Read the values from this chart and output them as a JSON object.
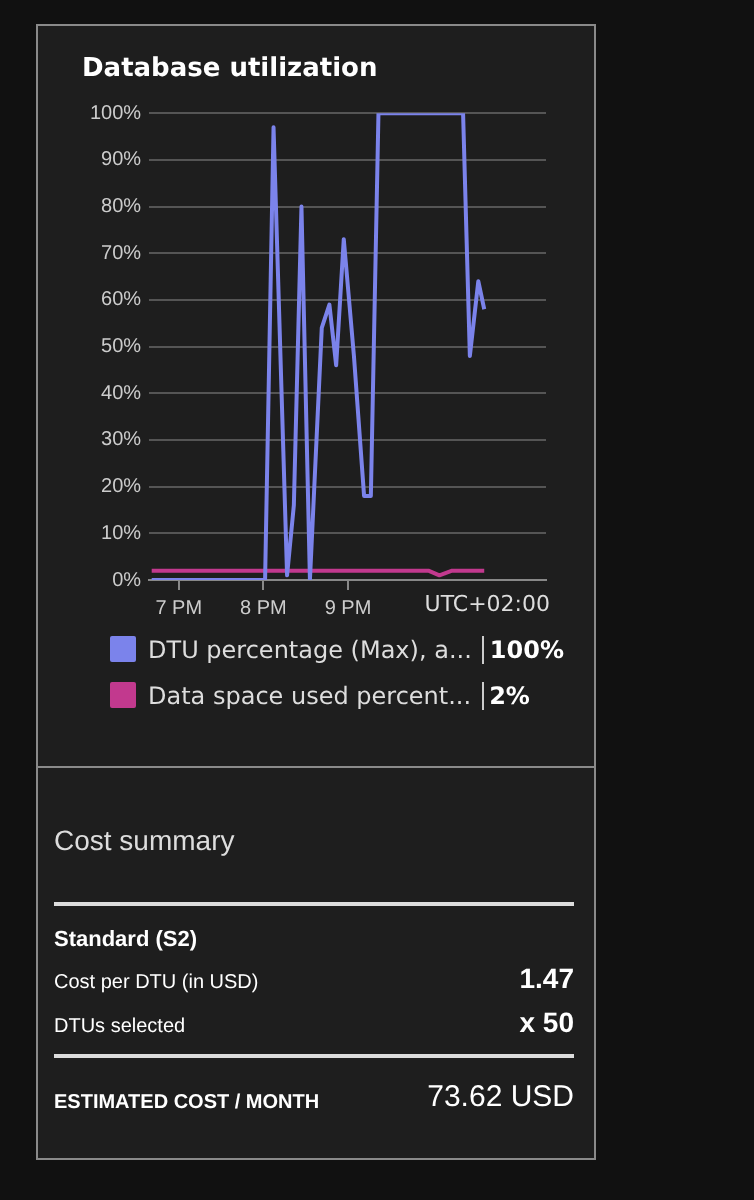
{
  "chart_data": [
    {
      "type": "line",
      "title": "Database utilization",
      "xlabel": "UTC+02:00",
      "legend": "bottom",
      "grid": "y",
      "marker": "none",
      "line_style": "solid",
      "xlim": [
        6.65,
        11.34
      ],
      "xticks": [
        {
          "value": 7,
          "label": "7 PM"
        },
        {
          "value": 8,
          "label": "8 PM"
        },
        {
          "value": 9,
          "label": "9 PM"
        }
      ],
      "ylim": [
        0,
        100
      ],
      "yticks": [
        {
          "value": 0,
          "label": "0%"
        },
        {
          "value": 10,
          "label": "10%"
        },
        {
          "value": 20,
          "label": "20%"
        },
        {
          "value": 30,
          "label": "30%"
        },
        {
          "value": 40,
          "label": "40%"
        },
        {
          "value": 50,
          "label": "50%"
        },
        {
          "value": 60,
          "label": "60%"
        },
        {
          "value": 70,
          "label": "70%"
        },
        {
          "value": 80,
          "label": "80%"
        },
        {
          "value": 90,
          "label": "90%"
        },
        {
          "value": 100,
          "label": "100%"
        }
      ],
      "series": [
        {
          "name": "DTU percentage (Max), a...",
          "color": "#7b83eb",
          "x": [
            6.68,
            8.02,
            8.12,
            8.28,
            8.36,
            8.45,
            8.55,
            8.69,
            8.78,
            8.86,
            8.95,
            9.07,
            9.19,
            9.27,
            9.36,
            10.36,
            10.44,
            10.54,
            10.61
          ],
          "values": [
            0,
            0,
            97,
            1,
            16,
            80,
            0,
            54,
            59,
            46,
            73,
            48,
            18,
            18,
            100,
            100,
            48,
            64,
            58
          ]
        },
        {
          "name": "Data space used percent...",
          "color": "#c2398e",
          "x": [
            6.68,
            9.95,
            10.08,
            10.23,
            10.61
          ],
          "values": [
            2,
            2,
            1,
            2,
            2
          ]
        }
      ],
      "annotations": [
        "100%",
        "2%"
      ]
    },
    {
      "type": "other",
      "title": "Cost summary",
      "annotations": [
        "Standard (S2)",
        "Cost per DTU (in USD)",
        "1.47",
        "DTUs selected",
        "x 50",
        "ESTIMATED COST / MONTH",
        "73.62 USD"
      ]
    }
  ]
}
